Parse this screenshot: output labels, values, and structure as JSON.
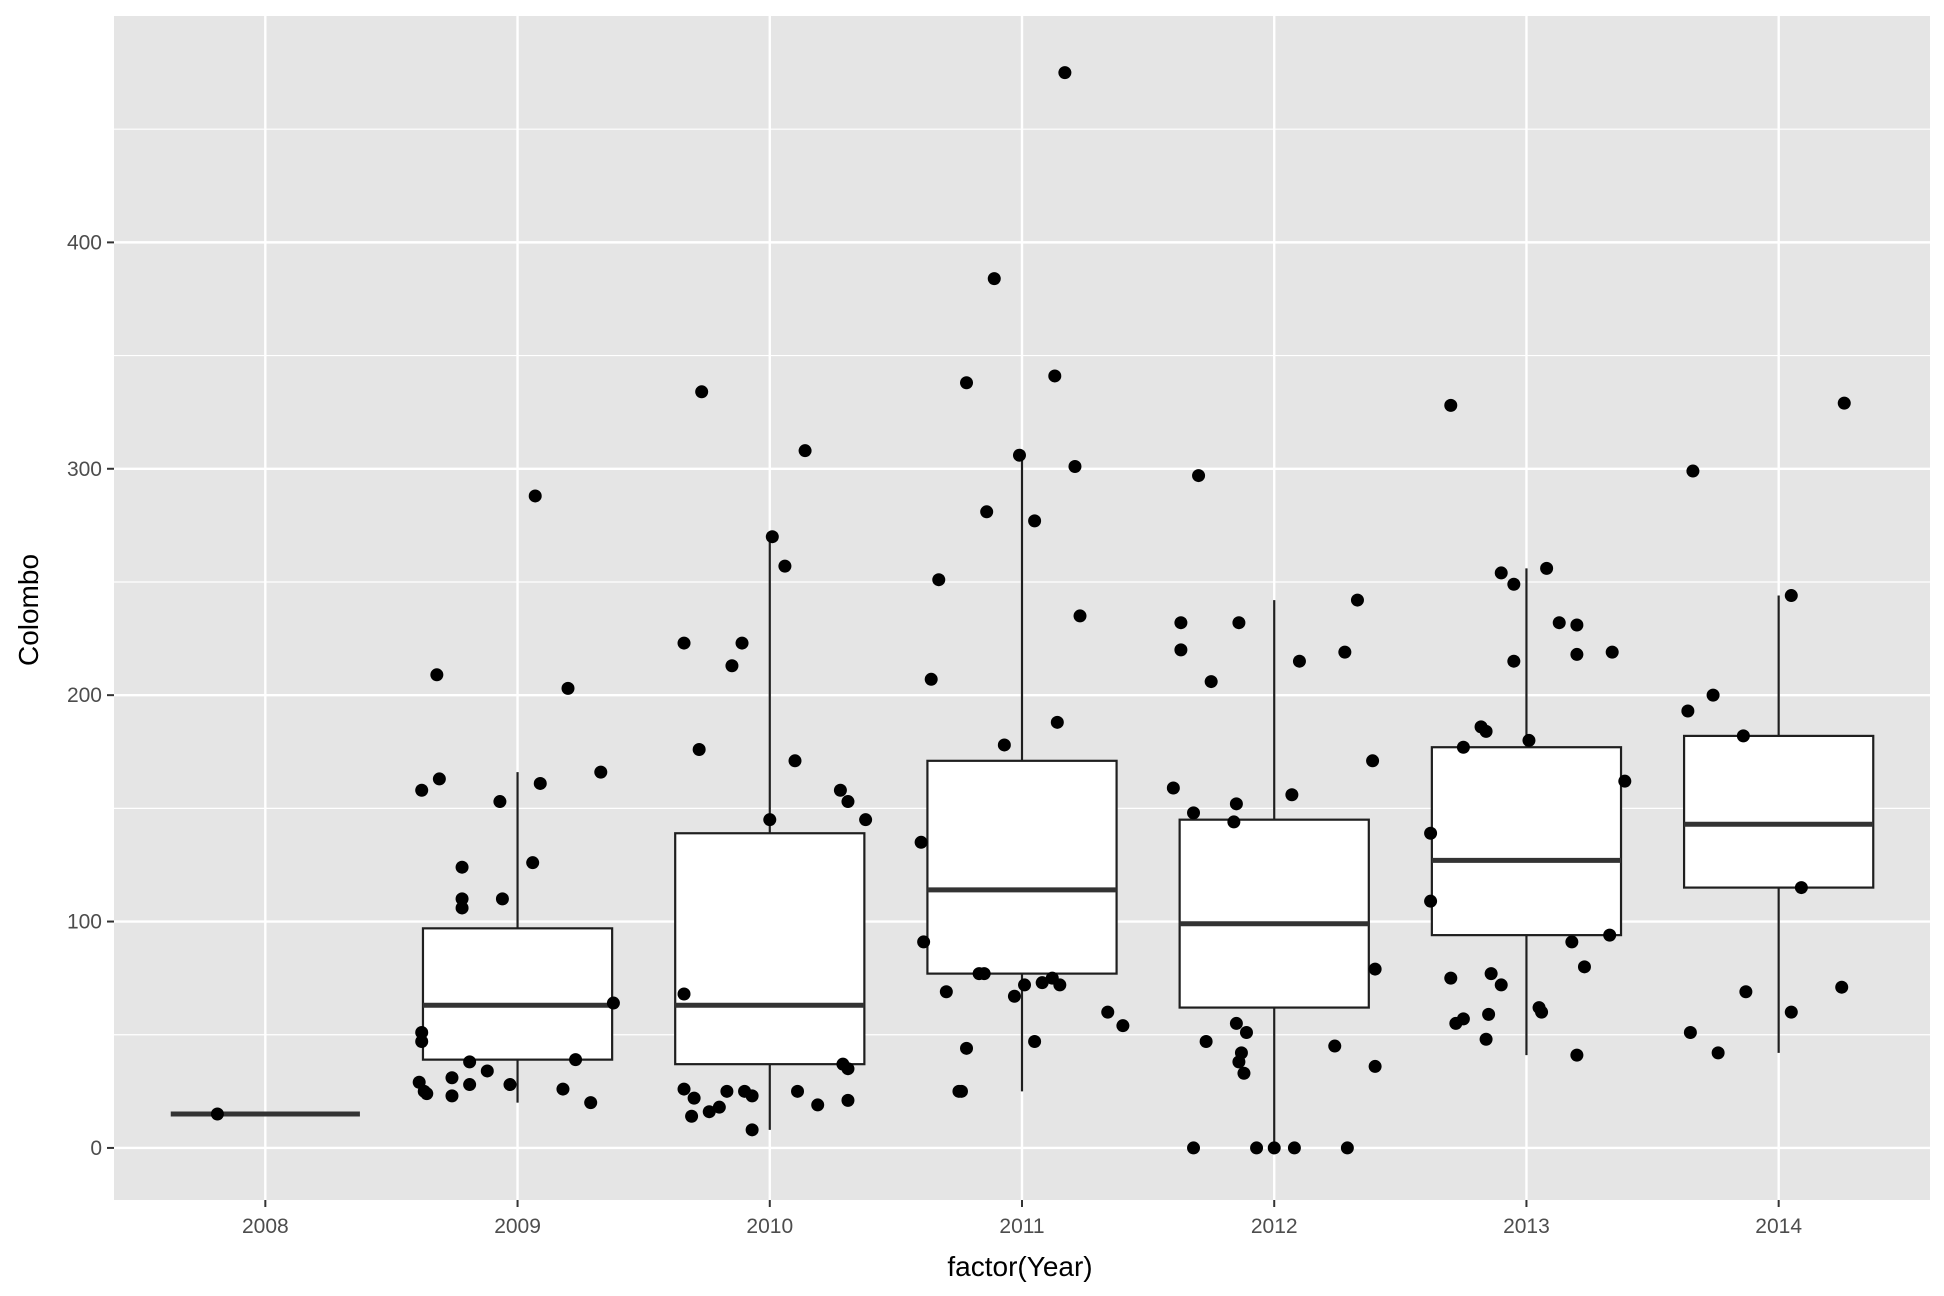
{
  "chart_data": {
    "type": "boxplot",
    "xlabel": "factor(Year)",
    "ylabel": "Colombo",
    "ylim": [
      -23,
      500
    ],
    "y_ticks": [
      0,
      100,
      200,
      300,
      400
    ],
    "categories": [
      "2008",
      "2009",
      "2010",
      "2011",
      "2012",
      "2013",
      "2014"
    ],
    "grid": true,
    "colors": {
      "panel": "#e5e5e5",
      "grid": "#ffffff",
      "box_fill": "#ffffff",
      "box_line": "#1f1f1f",
      "point": "#000000"
    },
    "boxes": [
      {
        "category": "2008",
        "lower": 15,
        "q1": 15,
        "median": 15,
        "q3": 15,
        "upper": 15
      },
      {
        "category": "2009",
        "lower": 20,
        "q1": 39,
        "median": 63,
        "q3": 97,
        "upper": 166
      },
      {
        "category": "2010",
        "lower": 8,
        "q1": 37,
        "median": 63,
        "q3": 139,
        "upper": 270
      },
      {
        "category": "2011",
        "lower": 25,
        "q1": 77,
        "median": 114,
        "q3": 171,
        "upper": 306
      },
      {
        "category": "2012",
        "lower": 0,
        "q1": 62,
        "median": 99,
        "q3": 145,
        "upper": 242
      },
      {
        "category": "2013",
        "lower": 41,
        "q1": 94,
        "median": 127,
        "q3": 177,
        "upper": 256
      },
      {
        "category": "2014",
        "lower": 42,
        "q1": 115,
        "median": 143,
        "q3": 182,
        "upper": 244
      }
    ],
    "points": [
      {
        "x": 0.81,
        "y": 15
      },
      {
        "x": 1.62,
        "y": 158
      },
      {
        "x": 1.68,
        "y": 209
      },
      {
        "x": 1.69,
        "y": 163
      },
      {
        "x": 1.78,
        "y": 124
      },
      {
        "x": 1.78,
        "y": 110
      },
      {
        "x": 1.78,
        "y": 106
      },
      {
        "x": 1.93,
        "y": 153
      },
      {
        "x": 1.94,
        "y": 110
      },
      {
        "x": 2.06,
        "y": 126
      },
      {
        "x": 2.07,
        "y": 288
      },
      {
        "x": 2.09,
        "y": 161
      },
      {
        "x": 2.2,
        "y": 203
      },
      {
        "x": 2.33,
        "y": 166
      },
      {
        "x": 1.62,
        "y": 51
      },
      {
        "x": 1.62,
        "y": 47
      },
      {
        "x": 2.38,
        "y": 64
      },
      {
        "x": 1.61,
        "y": 29
      },
      {
        "x": 1.63,
        "y": 25
      },
      {
        "x": 1.64,
        "y": 24
      },
      {
        "x": 1.74,
        "y": 31
      },
      {
        "x": 1.74,
        "y": 23
      },
      {
        "x": 1.81,
        "y": 28
      },
      {
        "x": 1.81,
        "y": 38
      },
      {
        "x": 1.88,
        "y": 34
      },
      {
        "x": 1.97,
        "y": 28
      },
      {
        "x": 2.18,
        "y": 26
      },
      {
        "x": 2.23,
        "y": 39
      },
      {
        "x": 2.29,
        "y": 20
      },
      {
        "x": 2.66,
        "y": 68
      },
      {
        "x": 2.66,
        "y": 223
      },
      {
        "x": 2.72,
        "y": 176
      },
      {
        "x": 2.73,
        "y": 334
      },
      {
        "x": 2.85,
        "y": 213
      },
      {
        "x": 2.89,
        "y": 223
      },
      {
        "x": 3.0,
        "y": 145
      },
      {
        "x": 3.01,
        "y": 270
      },
      {
        "x": 3.06,
        "y": 257
      },
      {
        "x": 3.1,
        "y": 171
      },
      {
        "x": 3.14,
        "y": 308
      },
      {
        "x": 3.28,
        "y": 158
      },
      {
        "x": 3.31,
        "y": 153
      },
      {
        "x": 3.38,
        "y": 145
      },
      {
        "x": 3.31,
        "y": 35
      },
      {
        "x": 3.29,
        "y": 37
      },
      {
        "x": 2.66,
        "y": 26
      },
      {
        "x": 2.69,
        "y": 14
      },
      {
        "x": 2.7,
        "y": 22
      },
      {
        "x": 2.76,
        "y": 16
      },
      {
        "x": 2.8,
        "y": 18
      },
      {
        "x": 2.83,
        "y": 25
      },
      {
        "x": 2.9,
        "y": 25
      },
      {
        "x": 2.93,
        "y": 23
      },
      {
        "x": 2.93,
        "y": 8
      },
      {
        "x": 3.11,
        "y": 25
      },
      {
        "x": 3.19,
        "y": 19
      },
      {
        "x": 3.31,
        "y": 21
      },
      {
        "x": 3.6,
        "y": 135
      },
      {
        "x": 3.61,
        "y": 91
      },
      {
        "x": 3.64,
        "y": 207
      },
      {
        "x": 3.67,
        "y": 251
      },
      {
        "x": 3.7,
        "y": 69
      },
      {
        "x": 3.75,
        "y": 25
      },
      {
        "x": 3.76,
        "y": 25
      },
      {
        "x": 3.78,
        "y": 44
      },
      {
        "x": 3.78,
        "y": 338
      },
      {
        "x": 3.83,
        "y": 77
      },
      {
        "x": 3.85,
        "y": 77
      },
      {
        "x": 3.86,
        "y": 281
      },
      {
        "x": 3.89,
        "y": 384
      },
      {
        "x": 3.93,
        "y": 178
      },
      {
        "x": 3.97,
        "y": 67
      },
      {
        "x": 3.99,
        "y": 306
      },
      {
        "x": 4.01,
        "y": 72
      },
      {
        "x": 4.05,
        "y": 277
      },
      {
        "x": 4.05,
        "y": 47
      },
      {
        "x": 4.08,
        "y": 73
      },
      {
        "x": 4.12,
        "y": 75
      },
      {
        "x": 4.13,
        "y": 341
      },
      {
        "x": 4.14,
        "y": 188
      },
      {
        "x": 4.15,
        "y": 72
      },
      {
        "x": 4.17,
        "y": 475
      },
      {
        "x": 4.21,
        "y": 301
      },
      {
        "x": 4.23,
        "y": 235
      },
      {
        "x": 4.34,
        "y": 60
      },
      {
        "x": 4.4,
        "y": 54
      },
      {
        "x": 4.6,
        "y": 159
      },
      {
        "x": 4.63,
        "y": 232
      },
      {
        "x": 4.63,
        "y": 220
      },
      {
        "x": 4.68,
        "y": 148
      },
      {
        "x": 4.68,
        "y": 0
      },
      {
        "x": 4.7,
        "y": 297
      },
      {
        "x": 4.73,
        "y": 47
      },
      {
        "x": 4.75,
        "y": 206
      },
      {
        "x": 4.84,
        "y": 144
      },
      {
        "x": 4.85,
        "y": 152
      },
      {
        "x": 4.85,
        "y": 55
      },
      {
        "x": 4.86,
        "y": 38
      },
      {
        "x": 4.86,
        "y": 232
      },
      {
        "x": 4.87,
        "y": 42
      },
      {
        "x": 4.88,
        "y": 33
      },
      {
        "x": 4.89,
        "y": 51
      },
      {
        "x": 4.93,
        "y": 0
      },
      {
        "x": 5.0,
        "y": 0
      },
      {
        "x": 5.07,
        "y": 156
      },
      {
        "x": 5.08,
        "y": 0
      },
      {
        "x": 5.1,
        "y": 215
      },
      {
        "x": 5.24,
        "y": 45
      },
      {
        "x": 5.28,
        "y": 219
      },
      {
        "x": 5.29,
        "y": 0
      },
      {
        "x": 5.33,
        "y": 242
      },
      {
        "x": 5.39,
        "y": 171
      },
      {
        "x": 5.4,
        "y": 79
      },
      {
        "x": 5.4,
        "y": 36
      },
      {
        "x": 5.62,
        "y": 139
      },
      {
        "x": 5.62,
        "y": 109
      },
      {
        "x": 5.7,
        "y": 75
      },
      {
        "x": 5.7,
        "y": 328
      },
      {
        "x": 5.72,
        "y": 55
      },
      {
        "x": 5.75,
        "y": 57
      },
      {
        "x": 5.75,
        "y": 177
      },
      {
        "x": 5.82,
        "y": 186
      },
      {
        "x": 5.84,
        "y": 184
      },
      {
        "x": 5.84,
        "y": 48
      },
      {
        "x": 5.85,
        "y": 59
      },
      {
        "x": 5.86,
        "y": 77
      },
      {
        "x": 5.9,
        "y": 254
      },
      {
        "x": 5.9,
        "y": 72
      },
      {
        "x": 5.95,
        "y": 249
      },
      {
        "x": 5.95,
        "y": 215
      },
      {
        "x": 6.01,
        "y": 180
      },
      {
        "x": 6.05,
        "y": 62
      },
      {
        "x": 6.06,
        "y": 60
      },
      {
        "x": 6.08,
        "y": 256
      },
      {
        "x": 6.13,
        "y": 232
      },
      {
        "x": 6.18,
        "y": 91
      },
      {
        "x": 6.2,
        "y": 41
      },
      {
        "x": 6.2,
        "y": 231
      },
      {
        "x": 6.2,
        "y": 218
      },
      {
        "x": 6.23,
        "y": 80
      },
      {
        "x": 6.33,
        "y": 94
      },
      {
        "x": 6.34,
        "y": 219
      },
      {
        "x": 6.39,
        "y": 162
      },
      {
        "x": 6.64,
        "y": 193
      },
      {
        "x": 6.65,
        "y": 51
      },
      {
        "x": 6.66,
        "y": 299
      },
      {
        "x": 6.74,
        "y": 200
      },
      {
        "x": 6.76,
        "y": 42
      },
      {
        "x": 6.86,
        "y": 182
      },
      {
        "x": 6.87,
        "y": 69
      },
      {
        "x": 7.05,
        "y": 244
      },
      {
        "x": 7.05,
        "y": 60
      },
      {
        "x": 7.09,
        "y": 115
      },
      {
        "x": 7.25,
        "y": 71
      },
      {
        "x": 7.26,
        "y": 329
      }
    ]
  }
}
